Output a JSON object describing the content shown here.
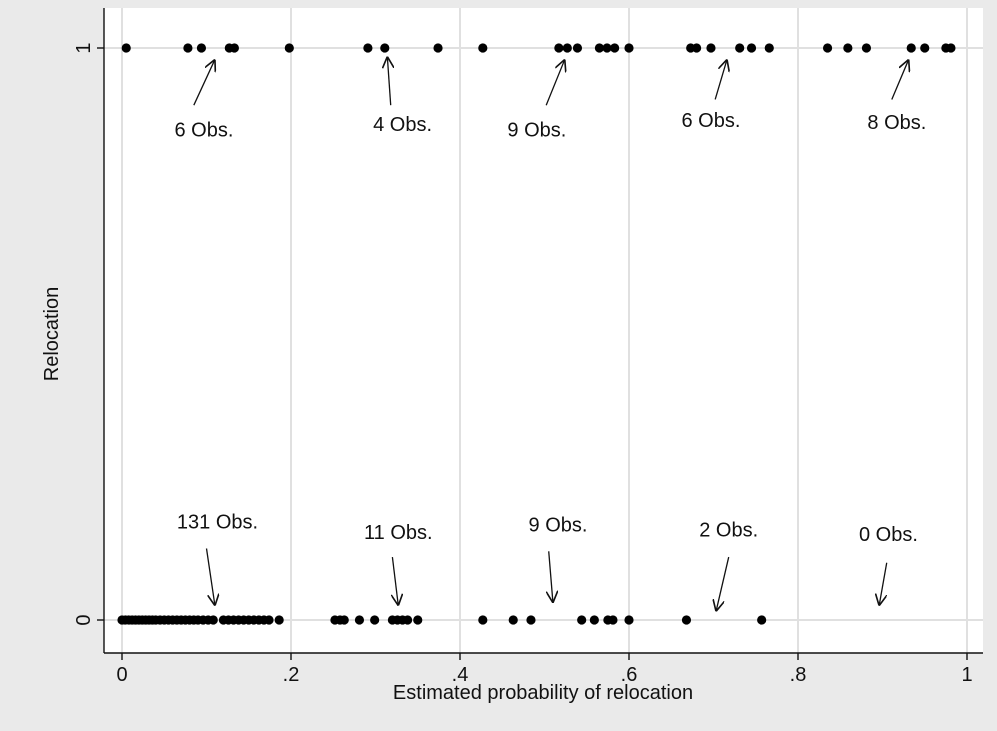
{
  "chart_data": {
    "type": "scatter",
    "title": "",
    "xlabel": "Estimated probability of relocation",
    "ylabel": "Relocation",
    "xlim": [
      0,
      1
    ],
    "ylim": [
      0,
      1
    ],
    "x_ticks": [
      0,
      0.2,
      0.4,
      0.6,
      0.8,
      1
    ],
    "x_tick_labels": [
      "0",
      ".2",
      ".4",
      ".6",
      ".8",
      "1"
    ],
    "y_ticks": [
      0,
      1
    ],
    "y_tick_labels": [
      "0",
      "1"
    ],
    "grid": "vertical",
    "legend": "none",
    "colors": {
      "plot_bg": "#ffffff",
      "outer_bg": "#eaeaea",
      "grid": "#e0e0e0",
      "marker": "#000000"
    },
    "points_y1": [
      0.005,
      0.078,
      0.094,
      0.127,
      0.133,
      0.198,
      0.291,
      0.311,
      0.374,
      0.427,
      0.517,
      0.527,
      0.539,
      0.565,
      0.574,
      0.583,
      0.6,
      0.673,
      0.68,
      0.697,
      0.731,
      0.745,
      0.766,
      0.835,
      0.859,
      0.881,
      0.934,
      0.95,
      0.975,
      0.981
    ],
    "points_y0": [
      0.0,
      0.004,
      0.008,
      0.012,
      0.016,
      0.02,
      0.024,
      0.028,
      0.032,
      0.036,
      0.04,
      0.045,
      0.05,
      0.055,
      0.06,
      0.065,
      0.07,
      0.075,
      0.08,
      0.085,
      0.09,
      0.096,
      0.102,
      0.108,
      0.12,
      0.126,
      0.132,
      0.138,
      0.144,
      0.15,
      0.156,
      0.162,
      0.168,
      0.174,
      0.186,
      0.252,
      0.258,
      0.263,
      0.281,
      0.299,
      0.32,
      0.326,
      0.332,
      0.338,
      0.35,
      0.427,
      0.463,
      0.484,
      0.544,
      0.559,
      0.575,
      0.581,
      0.6,
      0.668,
      0.757
    ],
    "annotations": [
      {
        "text": "6 Obs.",
        "group": 1,
        "text_x": 0.097,
        "text_y": 0.845,
        "arrow_from": [
          0.085,
          0.9
        ],
        "arrow_to": [
          0.11,
          0.98
        ]
      },
      {
        "text": "4 Obs.",
        "group": 1,
        "text_x": 0.332,
        "text_y": 0.855,
        "arrow_from": [
          0.318,
          0.9
        ],
        "arrow_to": [
          0.314,
          0.985
        ]
      },
      {
        "text": "9 Obs.",
        "group": 1,
        "text_x": 0.491,
        "text_y": 0.845,
        "arrow_from": [
          0.502,
          0.9
        ],
        "arrow_to": [
          0.524,
          0.98
        ]
      },
      {
        "text": "6 Obs.",
        "group": 1,
        "text_x": 0.697,
        "text_y": 0.862,
        "arrow_from": [
          0.702,
          0.91
        ],
        "arrow_to": [
          0.716,
          0.98
        ]
      },
      {
        "text": "8 Obs.",
        "group": 1,
        "text_x": 0.917,
        "text_y": 0.858,
        "arrow_from": [
          0.911,
          0.91
        ],
        "arrow_to": [
          0.931,
          0.98
        ]
      },
      {
        "text": "131 Obs.",
        "group": 0,
        "text_x": 0.113,
        "text_y": 0.16,
        "arrow_from": [
          0.1,
          0.125
        ],
        "arrow_to": [
          0.11,
          0.025
        ]
      },
      {
        "text": "11 Obs.",
        "group": 0,
        "text_x": 0.327,
        "text_y": 0.142,
        "arrow_from": [
          0.32,
          0.11
        ],
        "arrow_to": [
          0.327,
          0.025
        ]
      },
      {
        "text": "9 Obs.",
        "group": 0,
        "text_x": 0.516,
        "text_y": 0.155,
        "arrow_from": [
          0.505,
          0.12
        ],
        "arrow_to": [
          0.51,
          0.03
        ]
      },
      {
        "text": "2 Obs.",
        "group": 0,
        "text_x": 0.718,
        "text_y": 0.146,
        "arrow_from": [
          0.718,
          0.11
        ],
        "arrow_to": [
          0.703,
          0.015
        ]
      },
      {
        "text": "0 Obs.",
        "group": 0,
        "text_x": 0.907,
        "text_y": 0.138,
        "arrow_from": [
          0.905,
          0.1
        ],
        "arrow_to": [
          0.896,
          0.025
        ]
      }
    ]
  }
}
